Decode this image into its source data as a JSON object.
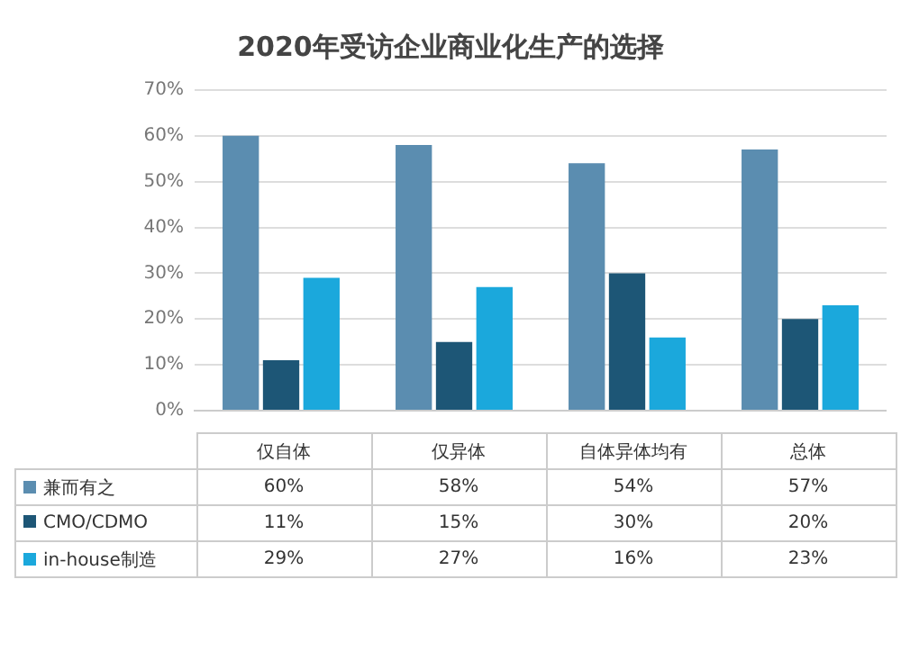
{
  "chart_data": {
    "type": "bar",
    "title": "2020年受访企业商业化生产的选择",
    "categories": [
      "仅自体",
      "仅异体",
      "自体异体均有",
      "总体"
    ],
    "series": [
      {
        "name": "兼而有之",
        "color": "#5b8db0",
        "values": [
          60,
          58,
          54,
          57
        ],
        "value_labels": [
          "60%",
          "58%",
          "54%",
          "57%"
        ]
      },
      {
        "name": "CMO/CDMO",
        "color": "#1d5676",
        "values": [
          11,
          15,
          30,
          20
        ],
        "value_labels": [
          "11%",
          "15%",
          "30%",
          "20%"
        ]
      },
      {
        "name": "in-house制造",
        "color": "#1ba8dc",
        "values": [
          29,
          27,
          16,
          23
        ],
        "value_labels": [
          "29%",
          "27%",
          "16%",
          "23%"
        ]
      }
    ],
    "ylim": [
      0,
      70
    ],
    "yticks": [
      {
        "value": 0,
        "label": "0%"
      },
      {
        "value": 10,
        "label": "10%"
      },
      {
        "value": 20,
        "label": "20%"
      },
      {
        "value": 30,
        "label": "30%"
      },
      {
        "value": 40,
        "label": "40%"
      },
      {
        "value": 50,
        "label": "50%"
      },
      {
        "value": 60,
        "label": "60%"
      },
      {
        "value": 70,
        "label": "70%"
      }
    ],
    "grid": "y",
    "legend": "bottom"
  }
}
